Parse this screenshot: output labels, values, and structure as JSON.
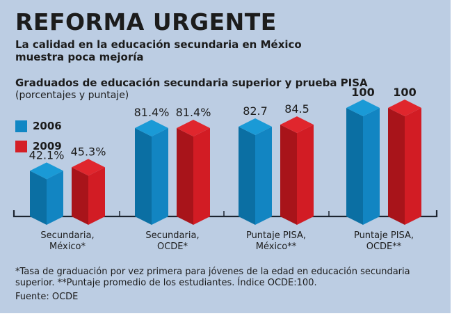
{
  "header": {
    "title": "REFORMA URGENTE",
    "subtitle": "La calidad en la educación secundaria en México muestra poca mejoría"
  },
  "chart_data": {
    "type": "bar",
    "title": "Graduados de educación secundaria superior y prueba PISA",
    "subtitle": "(porcentajes y puntaje)",
    "categories": [
      "Secundaria, México*",
      "Secundaria, OCDE*",
      "Puntaje PISA, México**",
      "Puntaje PISA, OCDE**"
    ],
    "category_lines": [
      [
        "Secundaria,",
        "México*"
      ],
      [
        "Secundaria,",
        "OCDE*"
      ],
      [
        "Puntaje PISA,",
        "México**"
      ],
      [
        "Puntaje PISA,",
        "OCDE**"
      ]
    ],
    "series": [
      {
        "name": "2006",
        "color": "#1187c4",
        "values": [
          42.1,
          81.4,
          82.7,
          100
        ],
        "labels": [
          "42.1%",
          "81.4%",
          "82.7",
          "100"
        ]
      },
      {
        "name": "2009",
        "color": "#d41f26",
        "values": [
          45.3,
          81.4,
          84.5,
          100
        ],
        "labels": [
          "45.3%",
          "81.4%",
          "84.5",
          "100"
        ]
      }
    ],
    "ylim": [
      0,
      100
    ],
    "grid": false,
    "legend": "top-left",
    "xlabel": "",
    "ylabel": ""
  },
  "footnotes": {
    "note": "*Tasa de graduación por vez primera para jóvenes de la edad en educación secundaria superior. **Puntaje promedio de los estudiantes. Índice OCDE:100.",
    "source": "Fuente: OCDE"
  }
}
